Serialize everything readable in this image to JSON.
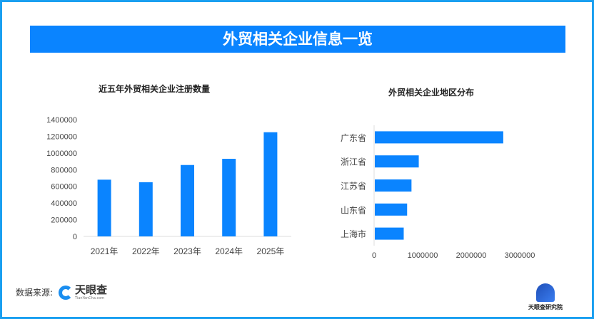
{
  "title": "外贸相关企业信息一览",
  "source_label": "数据来源:",
  "source_logo": {
    "name": "天眼查",
    "sub": "TianYanCha.com"
  },
  "institute": "天眼查研究院",
  "colors": {
    "bar": "#0a84ff",
    "banner": "#0a84ff",
    "frame": "#1a9ff0"
  },
  "chart_data": [
    {
      "type": "bar",
      "title": "近五年外贸相关企业注册数量",
      "categories": [
        "2021年",
        "2022年",
        "2023年",
        "2024年",
        "2025年"
      ],
      "values": [
        680000,
        650000,
        856000,
        930000,
        1249000
      ],
      "ylim": [
        0,
        1400000
      ],
      "yticks": [
        "0",
        "200000",
        "400000",
        "600000",
        "800000",
        "1000000",
        "1200000",
        "1400000"
      ],
      "xlabel": "",
      "ylabel": ""
    },
    {
      "type": "bar",
      "orientation": "horizontal",
      "title": "外贸相关企业地区分布",
      "categories": [
        "广东省",
        "浙江省",
        "江苏省",
        "山东省",
        "上海市"
      ],
      "values": [
        2660000,
        920000,
        770000,
        680000,
        610000
      ],
      "xlim": [
        0,
        3000000
      ],
      "xticks": [
        "0",
        "1000000",
        "2000000",
        "3000000"
      ]
    }
  ]
}
